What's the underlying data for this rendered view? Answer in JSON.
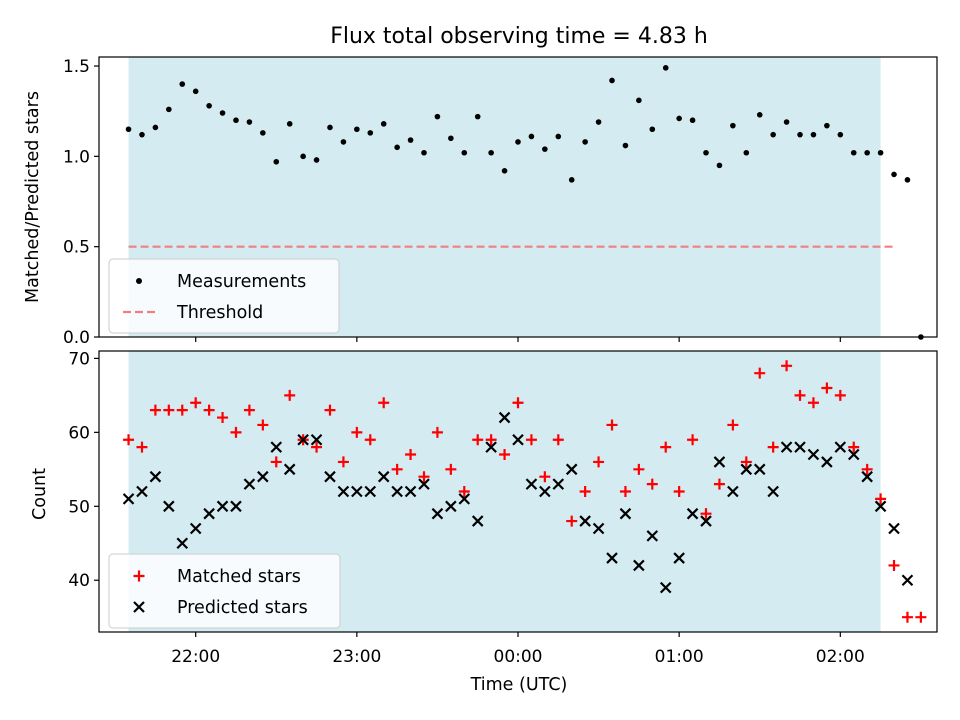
{
  "chart_data": [
    {
      "type": "scatter",
      "title": "Flux total observing time = 4.83 h",
      "xlabel": "",
      "ylabel": "Matched/Predicted stars",
      "ylim": [
        0,
        1.55
      ],
      "yticks": [
        "0.0",
        "0.5",
        "1.0",
        "1.5"
      ],
      "x_axis": "time of day (UTC), 21:24 to 02:36",
      "shaded_interval": [
        "21:35",
        "02:15"
      ],
      "shade_color": "#add8e6",
      "threshold": 0.5,
      "threshold_color": "#f08080",
      "legend": {
        "placement": "lower left",
        "entries": [
          {
            "label": "Measurements",
            "marker": "dot",
            "color": "#000000"
          },
          {
            "label": "Threshold",
            "marker": "dashed-line",
            "color": "#f08080"
          }
        ]
      },
      "series": [
        {
          "name": "Measurements",
          "color": "#000000",
          "points": [
            [
              "21:35",
              1.15
            ],
            [
              "21:40",
              1.12
            ],
            [
              "21:45",
              1.16
            ],
            [
              "21:50",
              1.26
            ],
            [
              "21:55",
              1.4
            ],
            [
              "22:00",
              1.36
            ],
            [
              "22:05",
              1.28
            ],
            [
              "22:10",
              1.24
            ],
            [
              "22:15",
              1.2
            ],
            [
              "22:20",
              1.19
            ],
            [
              "22:25",
              1.13
            ],
            [
              "22:30",
              0.97
            ],
            [
              "22:35",
              1.18
            ],
            [
              "22:40",
              1.0
            ],
            [
              "22:45",
              0.98
            ],
            [
              "22:50",
              1.16
            ],
            [
              "22:55",
              1.08
            ],
            [
              "23:00",
              1.15
            ],
            [
              "23:05",
              1.13
            ],
            [
              "23:10",
              1.18
            ],
            [
              "23:15",
              1.05
            ],
            [
              "23:20",
              1.09
            ],
            [
              "23:25",
              1.02
            ],
            [
              "23:30",
              1.22
            ],
            [
              "23:35",
              1.1
            ],
            [
              "23:40",
              1.02
            ],
            [
              "23:45",
              1.22
            ],
            [
              "23:50",
              1.02
            ],
            [
              "23:55",
              0.92
            ],
            [
              "00:00",
              1.08
            ],
            [
              "00:05",
              1.11
            ],
            [
              "00:10",
              1.04
            ],
            [
              "00:15",
              1.11
            ],
            [
              "00:20",
              0.87
            ],
            [
              "00:25",
              1.08
            ],
            [
              "00:30",
              1.19
            ],
            [
              "00:35",
              1.42
            ],
            [
              "00:40",
              1.06
            ],
            [
              "00:45",
              1.31
            ],
            [
              "00:50",
              1.15
            ],
            [
              "00:55",
              1.49
            ],
            [
              "01:00",
              1.21
            ],
            [
              "01:05",
              1.2
            ],
            [
              "01:10",
              1.02
            ],
            [
              "01:15",
              0.95
            ],
            [
              "01:20",
              1.17
            ],
            [
              "01:25",
              1.02
            ],
            [
              "01:30",
              1.23
            ],
            [
              "01:35",
              1.12
            ],
            [
              "01:40",
              1.19
            ],
            [
              "01:45",
              1.12
            ],
            [
              "01:50",
              1.12
            ],
            [
              "01:55",
              1.17
            ],
            [
              "02:00",
              1.12
            ],
            [
              "02:05",
              1.02
            ],
            [
              "02:10",
              1.02
            ],
            [
              "02:15",
              1.02
            ],
            [
              "02:20",
              0.9
            ],
            [
              "02:25",
              0.87
            ],
            [
              "02:30",
              0.0
            ]
          ]
        }
      ]
    },
    {
      "type": "scatter",
      "xlabel": "Time (UTC)",
      "ylabel": "Count",
      "ylim": [
        33,
        71
      ],
      "yticks": [
        "40",
        "50",
        "60",
        "70"
      ],
      "xticks": [
        "22:00",
        "23:00",
        "00:00",
        "01:00",
        "02:00"
      ],
      "shaded_interval": [
        "21:35",
        "02:15"
      ],
      "shade_color": "#add8e6",
      "legend": {
        "placement": "lower left",
        "entries": [
          {
            "label": "Matched stars",
            "marker": "plus",
            "color": "#ff0000"
          },
          {
            "label": "Predicted stars",
            "marker": "cross",
            "color": "#000000"
          }
        ]
      },
      "series": [
        {
          "name": "Matched stars",
          "color": "#ff0000",
          "points": [
            [
              "21:35",
              59
            ],
            [
              "21:40",
              58
            ],
            [
              "21:45",
              63
            ],
            [
              "21:50",
              63
            ],
            [
              "21:55",
              63
            ],
            [
              "22:00",
              64
            ],
            [
              "22:05",
              63
            ],
            [
              "22:10",
              62
            ],
            [
              "22:15",
              60
            ],
            [
              "22:20",
              63
            ],
            [
              "22:25",
              61
            ],
            [
              "22:30",
              56
            ],
            [
              "22:35",
              65
            ],
            [
              "22:40",
              59
            ],
            [
              "22:45",
              58
            ],
            [
              "22:50",
              63
            ],
            [
              "22:55",
              56
            ],
            [
              "23:00",
              60
            ],
            [
              "23:05",
              59
            ],
            [
              "23:10",
              64
            ],
            [
              "23:15",
              55
            ],
            [
              "23:20",
              57
            ],
            [
              "23:25",
              54
            ],
            [
              "23:30",
              60
            ],
            [
              "23:35",
              55
            ],
            [
              "23:40",
              52
            ],
            [
              "23:45",
              59
            ],
            [
              "23:50",
              59
            ],
            [
              "23:55",
              57
            ],
            [
              "00:00",
              64
            ],
            [
              "00:05",
              59
            ],
            [
              "00:10",
              54
            ],
            [
              "00:15",
              59
            ],
            [
              "00:20",
              48
            ],
            [
              "00:25",
              52
            ],
            [
              "00:30",
              56
            ],
            [
              "00:35",
              61
            ],
            [
              "00:40",
              52
            ],
            [
              "00:45",
              55
            ],
            [
              "00:50",
              53
            ],
            [
              "00:55",
              58
            ],
            [
              "01:00",
              52
            ],
            [
              "01:05",
              59
            ],
            [
              "01:10",
              49
            ],
            [
              "01:15",
              53
            ],
            [
              "01:20",
              61
            ],
            [
              "01:25",
              56
            ],
            [
              "01:30",
              68
            ],
            [
              "01:35",
              58
            ],
            [
              "01:40",
              69
            ],
            [
              "01:45",
              65
            ],
            [
              "01:50",
              64
            ],
            [
              "01:55",
              66
            ],
            [
              "02:00",
              65
            ],
            [
              "02:05",
              58
            ],
            [
              "02:10",
              55
            ],
            [
              "02:15",
              51
            ],
            [
              "02:20",
              42
            ],
            [
              "02:25",
              35
            ],
            [
              "02:30",
              35
            ]
          ]
        },
        {
          "name": "Predicted stars",
          "color": "#000000",
          "points": [
            [
              "21:35",
              51
            ],
            [
              "21:40",
              52
            ],
            [
              "21:45",
              54
            ],
            [
              "21:50",
              50
            ],
            [
              "21:55",
              45
            ],
            [
              "22:00",
              47
            ],
            [
              "22:05",
              49
            ],
            [
              "22:10",
              50
            ],
            [
              "22:15",
              50
            ],
            [
              "22:20",
              53
            ],
            [
              "22:25",
              54
            ],
            [
              "22:30",
              58
            ],
            [
              "22:35",
              55
            ],
            [
              "22:40",
              59
            ],
            [
              "22:45",
              59
            ],
            [
              "22:50",
              54
            ],
            [
              "22:55",
              52
            ],
            [
              "23:00",
              52
            ],
            [
              "23:05",
              52
            ],
            [
              "23:10",
              54
            ],
            [
              "23:15",
              52
            ],
            [
              "23:20",
              52
            ],
            [
              "23:25",
              53
            ],
            [
              "23:30",
              49
            ],
            [
              "23:35",
              50
            ],
            [
              "23:40",
              51
            ],
            [
              "23:45",
              48
            ],
            [
              "23:50",
              58
            ],
            [
              "23:55",
              62
            ],
            [
              "00:00",
              59
            ],
            [
              "00:05",
              53
            ],
            [
              "00:10",
              52
            ],
            [
              "00:15",
              53
            ],
            [
              "00:20",
              55
            ],
            [
              "00:25",
              48
            ],
            [
              "00:30",
              47
            ],
            [
              "00:35",
              43
            ],
            [
              "00:40",
              49
            ],
            [
              "00:45",
              42
            ],
            [
              "00:50",
              46
            ],
            [
              "00:55",
              39
            ],
            [
              "01:00",
              43
            ],
            [
              "01:05",
              49
            ],
            [
              "01:10",
              48
            ],
            [
              "01:15",
              56
            ],
            [
              "01:20",
              52
            ],
            [
              "01:25",
              55
            ],
            [
              "01:30",
              55
            ],
            [
              "01:35",
              52
            ],
            [
              "01:40",
              58
            ],
            [
              "01:45",
              58
            ],
            [
              "01:50",
              57
            ],
            [
              "01:55",
              56
            ],
            [
              "02:00",
              58
            ],
            [
              "02:05",
              57
            ],
            [
              "02:10",
              54
            ],
            [
              "02:15",
              50
            ],
            [
              "02:20",
              47
            ],
            [
              "02:25",
              40
            ]
          ]
        }
      ]
    }
  ]
}
